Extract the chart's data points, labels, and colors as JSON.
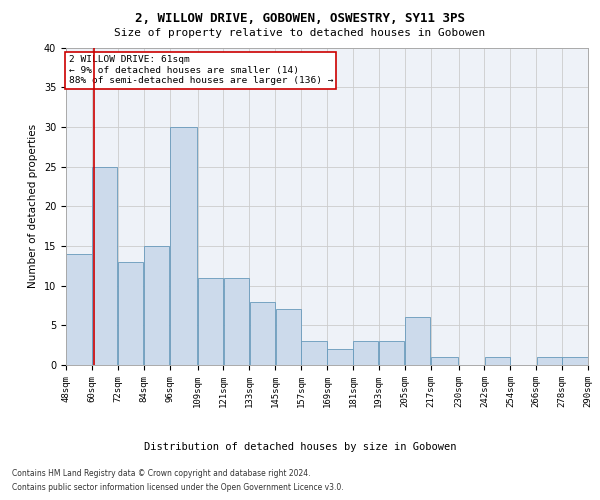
{
  "title1": "2, WILLOW DRIVE, GOBOWEN, OSWESTRY, SY11 3PS",
  "title2": "Size of property relative to detached houses in Gobowen",
  "xlabel": "Distribution of detached houses by size in Gobowen",
  "ylabel": "Number of detached properties",
  "footer1": "Contains HM Land Registry data © Crown copyright and database right 2024.",
  "footer2": "Contains public sector information licensed under the Open Government Licence v3.0.",
  "annotation_line1": "2 WILLOW DRIVE: 61sqm",
  "annotation_line2": "← 9% of detached houses are smaller (14)",
  "annotation_line3": "88% of semi-detached houses are larger (136) →",
  "property_size": 61,
  "bar_left_edges": [
    48,
    60,
    72,
    84,
    96,
    109,
    121,
    133,
    145,
    157,
    169,
    181,
    193,
    205,
    217,
    230,
    242,
    254,
    266,
    278
  ],
  "bar_widths": [
    12,
    12,
    12,
    12,
    13,
    12,
    12,
    12,
    12,
    12,
    12,
    12,
    12,
    12,
    13,
    12,
    12,
    12,
    12,
    12
  ],
  "bar_heights": [
    14,
    25,
    13,
    15,
    30,
    11,
    11,
    8,
    7,
    3,
    2,
    3,
    3,
    6,
    1,
    0,
    1,
    0,
    1,
    1
  ],
  "tick_labels": [
    "48sqm",
    "60sqm",
    "72sqm",
    "84sqm",
    "96sqm",
    "109sqm",
    "121sqm",
    "133sqm",
    "145sqm",
    "157sqm",
    "169sqm",
    "181sqm",
    "193sqm",
    "205sqm",
    "217sqm",
    "230sqm",
    "242sqm",
    "254sqm",
    "266sqm",
    "278sqm",
    "290sqm"
  ],
  "tick_positions": [
    48,
    60,
    72,
    84,
    96,
    109,
    121,
    133,
    145,
    157,
    169,
    181,
    193,
    205,
    217,
    230,
    242,
    254,
    266,
    278,
    290
  ],
  "bar_color": "#ccdaeb",
  "bar_edge_color": "#6699bb",
  "vline_color": "#cc0000",
  "box_edge_color": "#cc0000",
  "grid_color": "#cccccc",
  "bg_color": "#eef2f8",
  "ylim": [
    0,
    40
  ],
  "xlim": [
    48,
    290
  ],
  "yticks": [
    0,
    5,
    10,
    15,
    20,
    25,
    30,
    35,
    40
  ],
  "title1_fontsize": 9,
  "title2_fontsize": 8,
  "ylabel_fontsize": 7.5,
  "xlabel_fontsize": 7.5,
  "tick_fontsize": 6.5,
  "ytick_fontsize": 7,
  "annotation_fontsize": 6.8,
  "footer_fontsize": 5.5
}
